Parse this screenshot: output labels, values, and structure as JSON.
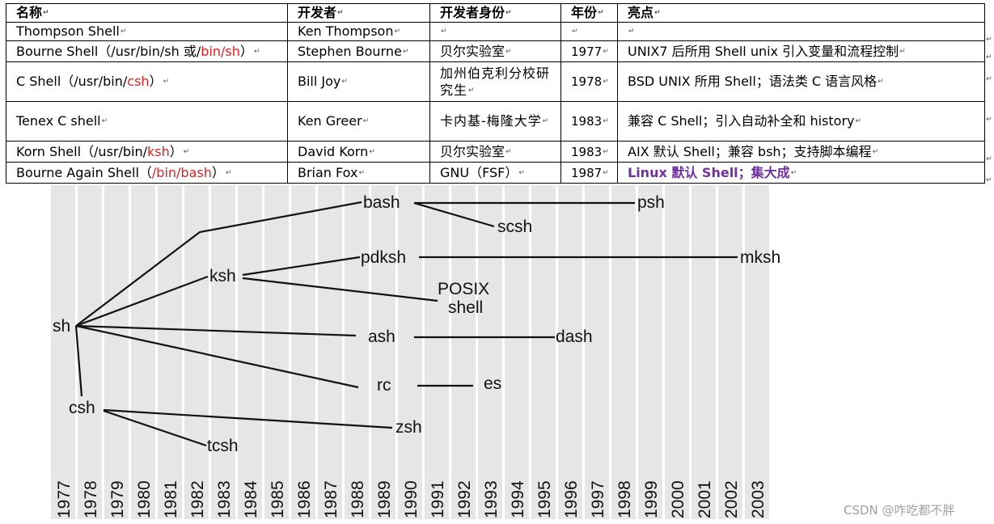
{
  "table": {
    "headers": [
      "名称",
      "开发者",
      "开发者身份",
      "年份",
      "亮点"
    ],
    "rows": [
      {
        "name": "Thompson Shell",
        "name_red": "",
        "name_tail": "",
        "developer": "Ken Thompson",
        "identity": "",
        "year": "",
        "highlight": ""
      },
      {
        "name": "Bourne Shell（/usr/bin/sh 或/",
        "name_red": "bin/sh",
        "name_tail": "）",
        "developer": "Stephen Bourne",
        "identity": "贝尔实验室",
        "year": "1977",
        "highlight": "UNIX7 后所用 Shell  unix 引入变量和流程控制"
      },
      {
        "name": "C Shell（/usr/bin/",
        "name_red": "csh",
        "name_tail": "）",
        "developer": "Bill Joy",
        "identity": "加州伯克利分校研究生",
        "year": "1978",
        "highlight": "BSD UNIX 所用 Shell；语法类 C 语言风格"
      },
      {
        "name": "Tenex C shell",
        "name_red": "",
        "name_tail": "",
        "developer": "Ken Greer",
        "identity": "卡内基-梅隆大学",
        "year": "1983",
        "highlight": "兼容 C Shell；引入自动补全和 history"
      },
      {
        "name": "Korn Shell（/usr/bin/",
        "name_red": "ksh",
        "name_tail": "）",
        "developer": "David Korn",
        "identity": "贝尔实验室",
        "year": "1983",
        "highlight": "AIX 默认 Shell；兼容 bsh；支持脚本编程"
      },
      {
        "name": "Bourne Again Shell（",
        "name_red": "/bin/bash",
        "name_tail": "）",
        "developer": "Brian Fox",
        "identity": "GNU（FSF）",
        "year": "1987",
        "highlight": "Linux 默认 Shell；集大成"
      }
    ]
  },
  "timeline": {
    "years": [
      "1977",
      "1978",
      "1979",
      "1980",
      "1981",
      "1982",
      "1983",
      "1984",
      "1985",
      "1986",
      "1987",
      "1988",
      "1989",
      "1990",
      "1991",
      "1992",
      "1993",
      "1994",
      "1995",
      "1996",
      "1997",
      "1998",
      "1999",
      "2000",
      "2001",
      "2002",
      "2003"
    ],
    "nodes": {
      "sh": "sh",
      "bash": "bash",
      "psh": "psh",
      "scsh": "scsh",
      "ksh": "ksh",
      "pdksh": "pdksh",
      "mksh": "mksh",
      "posix1": "POSIX",
      "posix2": "shell",
      "ash": "ash",
      "dash": "dash",
      "rc": "rc",
      "es": "es",
      "csh": "csh",
      "zsh": "zsh",
      "tcsh": "tcsh"
    }
  },
  "watermark": "CSDN @咋吃都不胖"
}
